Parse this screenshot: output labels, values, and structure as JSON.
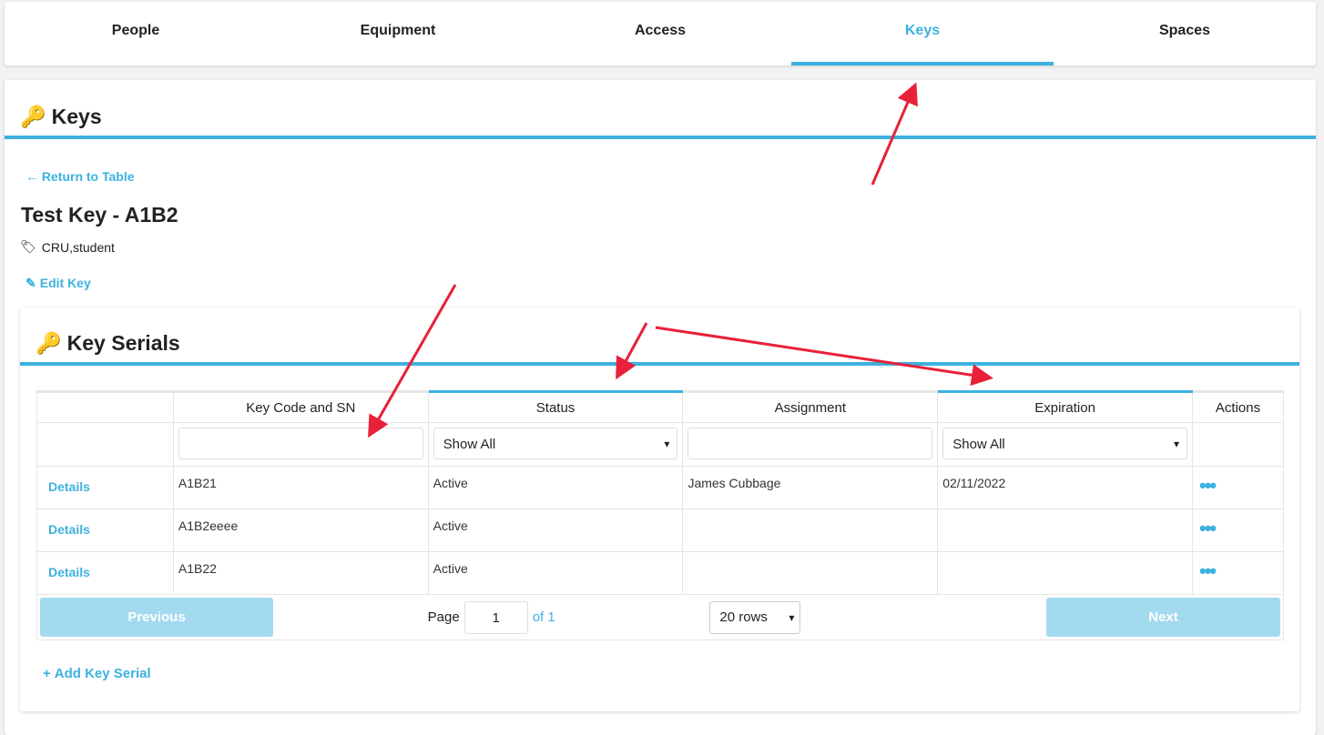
{
  "nav": {
    "tabs": [
      {
        "label": "People"
      },
      {
        "label": "Equipment"
      },
      {
        "label": "Access"
      },
      {
        "label": "Keys",
        "active": true
      },
      {
        "label": "Spaces"
      }
    ]
  },
  "page": {
    "title": "Keys",
    "return_link": "← Return to Table",
    "key_title": "Test Key - A1B2",
    "tags": "CRU,student",
    "edit_link": "Edit Key"
  },
  "serials": {
    "title": "Key Serials",
    "columns": [
      "",
      "Key Code and SN",
      "Status",
      "Assignment",
      "Expiration",
      "Actions"
    ],
    "filters": {
      "key_code": "",
      "status": "Show All",
      "assignment": "",
      "expiration": "Show All"
    },
    "rows": [
      {
        "action": "Details",
        "code": "A1B21",
        "status": "Active",
        "assignment": "James Cubbage",
        "expiration": "02/11/2022"
      },
      {
        "action": "Details",
        "code": "A1B2eeee",
        "status": "Active",
        "assignment": "",
        "expiration": ""
      },
      {
        "action": "Details",
        "code": "A1B22",
        "status": "Active",
        "assignment": "",
        "expiration": ""
      }
    ],
    "pagination": {
      "previous": "Previous",
      "page_label": "Page",
      "page": "1",
      "of_label": "of",
      "total": "1",
      "rows": "20 rows",
      "next": "Next"
    },
    "add_link": "Add Key Serial"
  },
  "colors": {
    "accent": "#3db1e0",
    "annotation": "#e8203a"
  }
}
